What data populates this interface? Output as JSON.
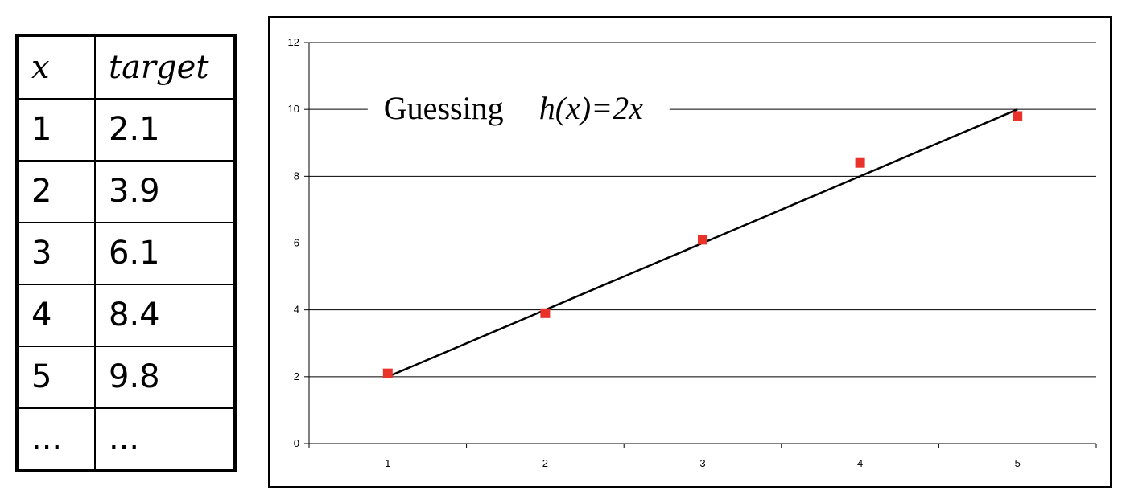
{
  "table": {
    "headers": [
      "x",
      "target"
    ],
    "rows": [
      [
        "1",
        "2.1"
      ],
      [
        "2",
        "3.9"
      ],
      [
        "3",
        "6.1"
      ],
      [
        "4",
        "8.4"
      ],
      [
        "5",
        "9.8"
      ],
      [
        "...",
        "..."
      ]
    ]
  },
  "chart_data": {
    "type": "scatter",
    "title": "",
    "xlabel": "",
    "ylabel": "",
    "x": [
      1,
      2,
      3,
      4,
      5
    ],
    "series": [
      {
        "type": "scatter",
        "marker": "square",
        "color": "#e8322a",
        "values": [
          2.1,
          3.9,
          6.1,
          8.4,
          9.8
        ]
      },
      {
        "type": "line",
        "color": "#000000",
        "x": [
          1,
          5
        ],
        "values": [
          2,
          10
        ]
      }
    ],
    "x_ticks": [
      "1",
      "2",
      "3",
      "4",
      "5"
    ],
    "y_ticks": [
      "0",
      "2",
      "4",
      "6",
      "8",
      "10",
      "12"
    ],
    "ylim": [
      0,
      12
    ],
    "xlim": [
      0.5,
      5.5
    ],
    "grid": "horizontal",
    "legend": "none",
    "annotation": {
      "prefix": "Guessing",
      "formula": "h(x)=2x"
    }
  }
}
